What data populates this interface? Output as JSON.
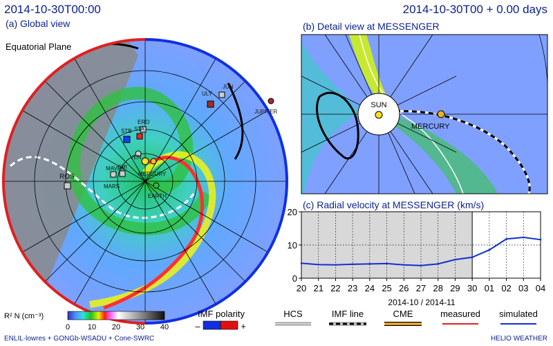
{
  "header": {
    "left_title": "2014-10-30T00:00",
    "right_title": "2014-10-30T00 + 0.00 days"
  },
  "panel_a": {
    "title": "(a) Global view",
    "plane_label": "Equatorial Plane",
    "objects": [
      {
        "name": "JUN",
        "color": "#cccccc"
      },
      {
        "name": "ULY",
        "color": "#cccccc"
      },
      {
        "name": "JUPITER",
        "color": "#a52a2a"
      },
      {
        "name": "ERO",
        "color": "#cccccc"
      },
      {
        "name": "STA",
        "color": "#ff2020"
      },
      {
        "name": "STB",
        "color": "#1040ff"
      },
      {
        "name": "VEN",
        "color": "#cccccc"
      },
      {
        "name": "MAVEN",
        "color": "#cccccc"
      },
      {
        "name": "SPI",
        "color": "#cccccc"
      },
      {
        "name": "MARS",
        "color": "#cccccc"
      },
      {
        "name": "MERCURY",
        "color": "#f0c020"
      },
      {
        "name": "EARTH",
        "color": "#30c030"
      },
      {
        "name": "ROS",
        "color": "#cccccc"
      }
    ]
  },
  "panel_b": {
    "title": "(b) Detail view at MESSENGER",
    "sun_label": "SUN",
    "planet_label": "MERCURY"
  },
  "chart_data": {
    "type": "line",
    "title": "(c) Radial velocity at MESSENGER (km/s)",
    "xlabel": "2014-10 / 2014-11",
    "ylabel": "",
    "categories": [
      "20",
      "21",
      "22",
      "23",
      "24",
      "25",
      "26",
      "27",
      "28",
      "29",
      "30",
      "01",
      "02",
      "03",
      "04"
    ],
    "ylim": [
      0,
      20
    ],
    "yticks": [
      "0",
      "10",
      "20"
    ],
    "grid": true,
    "shaded_until": "30",
    "series": [
      {
        "name": "simulated",
        "color": "#1030d0",
        "values": [
          4.5,
          4.1,
          4.0,
          4.2,
          4.3,
          4.4,
          4.0,
          3.8,
          4.3,
          5.6,
          6.3,
          8.5,
          11.8,
          12.3,
          11.6
        ]
      }
    ]
  },
  "legend": {
    "colorbar_label": "R² N (cm⁻³)",
    "colorbar_ticks": [
      "0",
      "10",
      "20",
      "30",
      "40"
    ],
    "imf_polarity_label": "IMF polarity",
    "imf_minus": "–",
    "imf_plus": "+",
    "hcs_label": "HCS",
    "imf_line_label": "IMF line",
    "cme_label": "CME",
    "measured_label": "measured",
    "simulated_label": "simulated",
    "colors": {
      "measured": "#e02020",
      "simulated": "#1030d0",
      "neg": "#1030e0",
      "pos": "#e01010",
      "cme": "#f0a020"
    }
  },
  "footer": {
    "left": "ENLIL-lowres + GONGb-WSADU + Cone-SWRC",
    "right": "HELIO WEATHER"
  }
}
